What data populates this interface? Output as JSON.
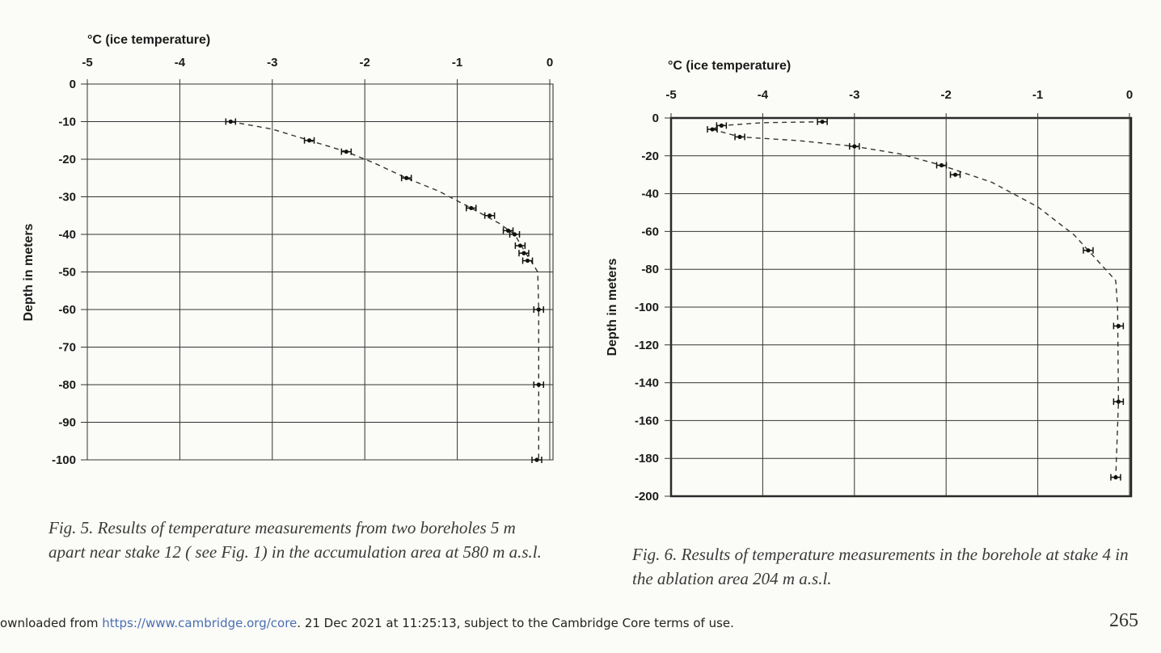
{
  "captions": {
    "fig5": "Fig. 5. Results of temperature measurements from two boreholes 5 m apart near stake 12 ( see Fig. 1) in the accumulation area at 580 m a.s.l.",
    "fig6": "Fig. 6. Results of temperature measurements in the borehole at stake 4 in the ablation area 204 m a.s.l."
  },
  "footer": {
    "prefix": "ownloaded from ",
    "link": "https://www.cambridge.org/core",
    "suffix": ". 21 Dec 2021 at 11:25:13, subject to the Cambridge Core terms of use."
  },
  "page_number": "265",
  "chart_data": [
    {
      "type": "scatter",
      "title": "",
      "xlabel": "°C (ice temperature)",
      "ylabel": "Depth in meters",
      "x_axis_position": "top",
      "xlim": [
        -5,
        0
      ],
      "ylim": [
        -100,
        0
      ],
      "xticks": [
        "-5",
        "-4",
        "-3",
        "-2",
        "-1",
        "0"
      ],
      "yticks": [
        "0",
        "-10",
        "-20",
        "-30",
        "-40",
        "-50",
        "-60",
        "-70",
        "-80",
        "-90",
        "-100"
      ],
      "grid": true,
      "error_bars": "horizontal",
      "points": [
        {
          "x": -3.45,
          "y": -10
        },
        {
          "x": -2.6,
          "y": -15
        },
        {
          "x": -2.2,
          "y": -18
        },
        {
          "x": -1.55,
          "y": -25
        },
        {
          "x": -0.85,
          "y": -33
        },
        {
          "x": -0.65,
          "y": -35
        },
        {
          "x": -0.45,
          "y": -39
        },
        {
          "x": -0.38,
          "y": -40
        },
        {
          "x": -0.32,
          "y": -43
        },
        {
          "x": -0.28,
          "y": -45
        },
        {
          "x": -0.24,
          "y": -47
        },
        {
          "x": -0.12,
          "y": -60
        },
        {
          "x": -0.12,
          "y": -80
        },
        {
          "x": -0.14,
          "y": -100
        }
      ],
      "fit_curve": [
        {
          "x": -3.45,
          "y": -10
        },
        {
          "x": -3.0,
          "y": -12
        },
        {
          "x": -2.6,
          "y": -15
        },
        {
          "x": -2.2,
          "y": -18
        },
        {
          "x": -1.9,
          "y": -21
        },
        {
          "x": -1.55,
          "y": -25
        },
        {
          "x": -1.2,
          "y": -28.5
        },
        {
          "x": -0.85,
          "y": -33
        },
        {
          "x": -0.55,
          "y": -37
        },
        {
          "x": -0.38,
          "y": -40
        },
        {
          "x": -0.26,
          "y": -45
        },
        {
          "x": -0.18,
          "y": -48
        },
        {
          "x": -0.13,
          "y": -50
        },
        {
          "x": -0.12,
          "y": -60
        },
        {
          "x": -0.12,
          "y": -100
        }
      ]
    },
    {
      "type": "scatter",
      "title": "",
      "xlabel": "°C (ice temperature)",
      "ylabel": "Depth in meters",
      "x_axis_position": "top",
      "xlim": [
        -5,
        0
      ],
      "ylim": [
        -200,
        0
      ],
      "xticks": [
        "-5",
        "-4",
        "-3",
        "-2",
        "-1",
        "0"
      ],
      "yticks": [
        "0",
        "-20",
        "-40",
        "-60",
        "-80",
        "-100",
        "-120",
        "-140",
        "-160",
        "-180",
        "-200"
      ],
      "grid": true,
      "error_bars": "horizontal",
      "points": [
        {
          "x": -3.35,
          "y": -2
        },
        {
          "x": -4.45,
          "y": -4
        },
        {
          "x": -4.55,
          "y": -6
        },
        {
          "x": -4.25,
          "y": -10
        },
        {
          "x": -3.0,
          "y": -15
        },
        {
          "x": -2.05,
          "y": -25
        },
        {
          "x": -1.9,
          "y": -30
        },
        {
          "x": -0.45,
          "y": -70
        },
        {
          "x": -0.12,
          "y": -110
        },
        {
          "x": -0.12,
          "y": -150
        },
        {
          "x": -0.15,
          "y": -190
        }
      ],
      "fit_curve_upper": [
        {
          "x": -3.35,
          "y": -2
        },
        {
          "x": -4.0,
          "y": -2.5
        },
        {
          "x": -4.45,
          "y": -4
        },
        {
          "x": -4.55,
          "y": -6
        }
      ],
      "fit_curve_lower": [
        {
          "x": -4.55,
          "y": -6
        },
        {
          "x": -4.25,
          "y": -10
        },
        {
          "x": -3.6,
          "y": -12
        },
        {
          "x": -3.0,
          "y": -15
        },
        {
          "x": -2.5,
          "y": -19
        },
        {
          "x": -2.05,
          "y": -25
        },
        {
          "x": -1.5,
          "y": -34
        },
        {
          "x": -1.0,
          "y": -47
        },
        {
          "x": -0.6,
          "y": -62
        },
        {
          "x": -0.3,
          "y": -78
        },
        {
          "x": -0.15,
          "y": -86
        },
        {
          "x": -0.13,
          "y": -100
        },
        {
          "x": -0.12,
          "y": -150
        },
        {
          "x": -0.15,
          "y": -190
        }
      ]
    }
  ]
}
